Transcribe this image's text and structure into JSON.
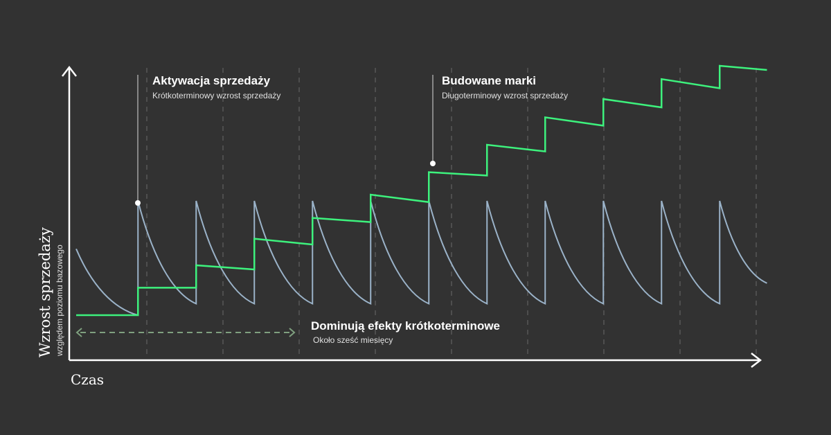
{
  "colors": {
    "background": "#323232",
    "axis": "#ffffff",
    "short_term_line": "#9bb3c9",
    "long_term_line": "#3df27d",
    "range_arrow": "#7fa07f",
    "gridline": "#6a6a6a",
    "text": "#ffffff",
    "subtext": "#e0e0e0"
  },
  "chart_data": {
    "type": "line",
    "xlabel": "Czas",
    "ylabel": "Wzrost sprzedaży",
    "ylabel_sub": "względem poziomu bazowego",
    "grid": "vertical dashed",
    "series": [
      {
        "x": [
          0,
          0.85,
          0.85,
          1.65,
          1.65,
          2.45,
          2.45,
          3.25,
          3.25,
          4.05,
          4.05,
          4.85,
          4.85,
          5.65,
          5.65,
          6.45,
          6.45,
          7.25,
          7.25,
          8.05,
          8.05,
          8.85,
          8.85,
          9.5
        ],
        "values": [
          0.58,
          0,
          1.0,
          0.1,
          1.0,
          0.1,
          1.0,
          0.1,
          1.0,
          0.1,
          1.0,
          0.1,
          1.0,
          0.1,
          1.0,
          0.1,
          1.0,
          0.1,
          1.0,
          0.1,
          1.0,
          0.1,
          1.0,
          0.28
        ],
        "shape": "decay"
      },
      {
        "x": [
          0,
          0.85,
          0.85,
          1.65,
          1.65,
          2.45,
          2.45,
          3.25,
          3.25,
          4.05,
          4.05,
          4.85,
          4.85,
          5.65,
          5.65,
          6.45,
          6.45,
          7.25,
          7.25,
          8.05,
          8.05,
          8.85,
          8.85,
          9.5
        ],
        "values": [
          0,
          0,
          0.33,
          0.33,
          0.6,
          0.55,
          0.92,
          0.85,
          1.17,
          1.12,
          1.45,
          1.36,
          1.72,
          1.68,
          2.05,
          1.97,
          2.38,
          2.28,
          2.6,
          2.5,
          2.84,
          2.73,
          3.0,
          2.95
        ],
        "shape": "step"
      }
    ],
    "annotations": [
      {
        "title": "Aktywacja sprzedaży",
        "subtitle": "Krótkoterminowy wzrost sprzedaży"
      },
      {
        "title": "Budowane marki",
        "subtitle": "Długoterminowy wzrost sprzedaży"
      },
      {
        "title": "Dominują efekty krótkoterminowe",
        "subtitle": "Około sześć miesięcy"
      }
    ]
  }
}
